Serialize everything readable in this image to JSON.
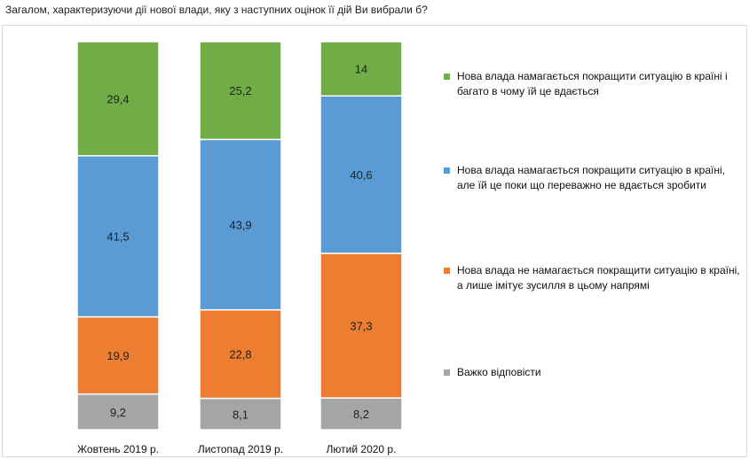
{
  "title": "Загалом, характеризуючи дії нової влади, яку з наступних оцінок її дій Ви вибрали б?",
  "chart_data": {
    "type": "bar",
    "stacked": true,
    "categories": [
      "Жовтень 2019 р.",
      "Листопад 2019 р.",
      "Лютий 2020 р."
    ],
    "ylim": [
      0,
      100
    ],
    "legend_position": "right",
    "grid": false,
    "series": [
      {
        "name": "Важко відповісти",
        "color": "#a5a5a5",
        "values": [
          9.2,
          8.1,
          8.2
        ],
        "labels": [
          "9,2",
          "8,1",
          "8,2"
        ]
      },
      {
        "name": "Нова влада не намагається покращити ситуацію в країні, а лише імітує зусилля в цьому напрямі",
        "color": "#ed7d31",
        "values": [
          19.9,
          22.8,
          37.3
        ],
        "labels": [
          "19,9",
          "22,8",
          "37,3"
        ]
      },
      {
        "name": "Нова влада намагається покращити ситуацію в країні, але їй це поки що переважно не вдається зробити",
        "color": "#5b9bd5",
        "values": [
          41.5,
          43.9,
          40.6
        ],
        "labels": [
          "41,5",
          "43,9",
          "40,6"
        ]
      },
      {
        "name": "Нова влада намагається покращити ситуацію в країні і багато в чому їй це вдається",
        "color": "#70ad47",
        "values": [
          29.4,
          25.2,
          14.0
        ],
        "labels": [
          "29,4",
          "25,2",
          "14"
        ]
      }
    ],
    "legend_order": [
      3,
      2,
      1,
      0
    ]
  }
}
